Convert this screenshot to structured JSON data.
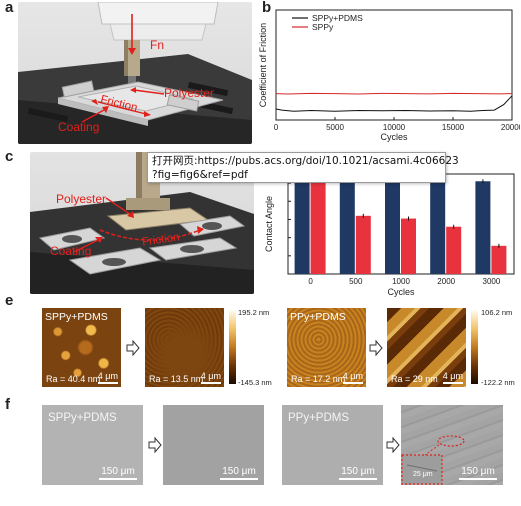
{
  "panels": {
    "a": {
      "letter": "a",
      "labels": {
        "fn": "Fn",
        "polyester": "Polyester",
        "friction": "Friction",
        "coating": "Coating"
      }
    },
    "b": {
      "letter": "b",
      "chart_data": {
        "type": "line",
        "xlabel": "Cycles",
        "ylabel": "Coefficient of Friction",
        "xlim": [
          0,
          20000
        ],
        "ylim": [
          0,
          0.5
        ],
        "xticks": [
          "0",
          "5000",
          "10000",
          "15000",
          "20000"
        ],
        "legend_placement": "top-left",
        "series": [
          {
            "name": "SPPy+PDMS",
            "color": "#111111",
            "x": [
              0,
              500,
              1500,
              3000,
              5000,
              7000,
              9000,
              11000,
              13000,
              15000,
              16500,
              17500,
              18500,
              19300,
              20000
            ],
            "y": [
              0.05,
              0.045,
              0.04,
              0.043,
              0.04,
              0.043,
              0.042,
              0.043,
              0.041,
              0.042,
              0.04,
              0.043,
              0.045,
              0.07,
              0.11
            ]
          },
          {
            "name": "SPPy",
            "color": "#d62728",
            "x": [
              0,
              1000,
              3000,
              5000,
              7000,
              9000,
              11000,
              13000,
              15000,
              17000,
              19000,
              20000
            ],
            "y": [
              0.12,
              0.118,
              0.121,
              0.12,
              0.118,
              0.121,
              0.12,
              0.119,
              0.121,
              0.12,
              0.119,
              0.12
            ]
          }
        ]
      }
    },
    "c": {
      "letter": "c",
      "labels": {
        "polyester": "Polyester",
        "friction": "Friction",
        "coating": "Coating"
      }
    },
    "d": {
      "chart_data": {
        "type": "bar",
        "categories": [
          "0",
          "500",
          "1000",
          "2000",
          "3000"
        ],
        "xlabel": "Cycles",
        "ylabel": "Contact Angle",
        "ylim": [
          0,
          110
        ],
        "yticks": [
          0,
          20,
          40,
          60,
          80,
          100
        ],
        "series": [
          {
            "name": "",
            "color": "#1f3864",
            "values": [
              104,
              103,
              103,
              103,
              102
            ]
          },
          {
            "name": "",
            "color": "#e8323e",
            "values": [
              104,
              64,
              61,
              52,
              31
            ]
          }
        ]
      }
    },
    "e": {
      "letter": "e",
      "images": [
        {
          "label": "SPPy+PDMS",
          "ra": "Ra = 40.4 nm",
          "scale": "4 μm",
          "kind": "blobs"
        },
        {
          "label": "",
          "ra": "Ra = 13.5 nm",
          "scale": "4 μm",
          "kind": "smooth"
        },
        {
          "label": "PPy+PDMS",
          "ra": "Ra = 17.2 nm",
          "scale": "4 μm",
          "kind": "grain"
        },
        {
          "label": "",
          "ra": "Ra = 29 nm",
          "scale": "4 μm",
          "kind": "stripes"
        }
      ],
      "scalebars": [
        {
          "max": "195.2 nm",
          "min": "-145.3 nm"
        },
        {
          "max": "106.2 nm",
          "min": "-122.2 nm"
        }
      ]
    },
    "f": {
      "letter": "f",
      "images": [
        {
          "label": "SPPy+PDMS",
          "scale": "150 μm"
        },
        {
          "label": "",
          "scale": "150 μm"
        },
        {
          "label": "PPy+PDMS",
          "scale": "150 μm"
        },
        {
          "label": "",
          "scale": "150 μm",
          "inset_scale": "25 μm"
        }
      ]
    }
  },
  "tooltip": {
    "line1": "打开网页:https://pubs.acs.org/doi/10.1021/acsami.4c06623",
    "line2": "?fig=fig6&ref=pdf"
  }
}
